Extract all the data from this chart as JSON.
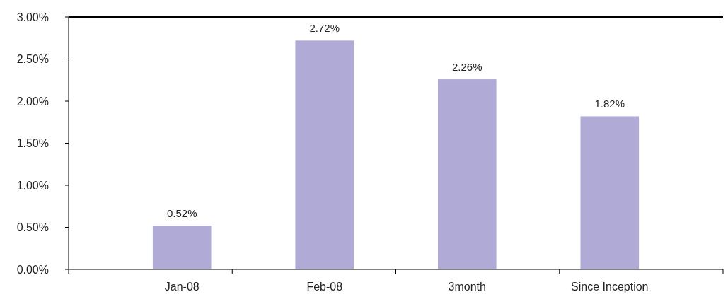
{
  "chart_data": {
    "type": "bar",
    "categories": [
      "Jan-08",
      "Feb-08",
      "3month",
      "Since Inception"
    ],
    "values": [
      0.52,
      2.72,
      2.26,
      1.82
    ],
    "value_labels": [
      "0.52%",
      "2.72%",
      "2.26%",
      "1.82%"
    ],
    "color": "#b0abd6",
    "ylim": [
      0,
      3
    ],
    "yticks": [
      {
        "value": 0,
        "label": "0.00%"
      },
      {
        "value": 0.5,
        "label": "0.50%"
      },
      {
        "value": 1,
        "label": "1.00%"
      },
      {
        "value": 1.5,
        "label": "1.50%"
      },
      {
        "value": 2,
        "label": "2.00%"
      },
      {
        "value": 2.5,
        "label": "2.50%"
      },
      {
        "value": 3,
        "label": "3.00%"
      }
    ],
    "grid": false
  }
}
